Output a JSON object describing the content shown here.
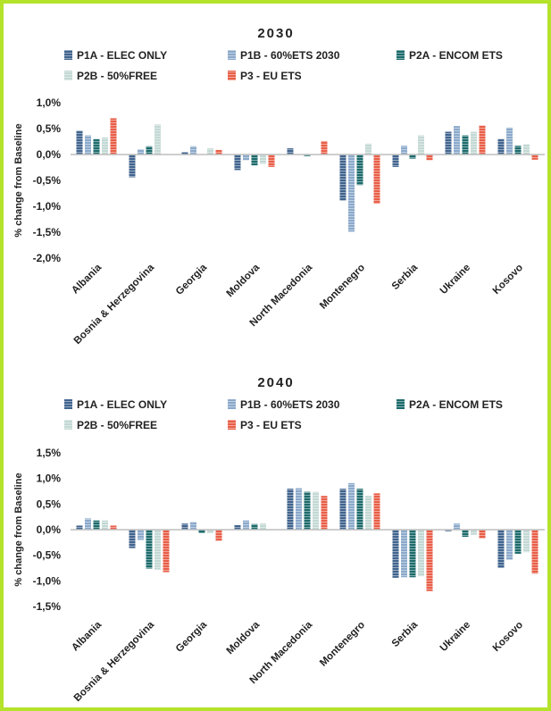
{
  "chart_data": [
    {
      "type": "bar",
      "title": "2030",
      "ylabel": "% change from Baseline",
      "xlabel": "",
      "ylim": [
        -2.0,
        1.0
      ],
      "yticks": [
        "1,0%",
        "0,5%",
        "0,0%",
        "-0,5%",
        "-1,0%",
        "-1,5%",
        "-2,0%"
      ],
      "grid": false,
      "legend": "top",
      "categories": [
        "Albania",
        "Bosnia & Herzegovina",
        "Georgia",
        "Moldova",
        "North Macedonia",
        "Montenegro",
        "Serbia",
        "Ukraine",
        "Kosovo"
      ],
      "series": [
        {
          "name": "P1A - ELEC ONLY",
          "color": "#41648e",
          "values": [
            0.46,
            -0.44,
            0.05,
            -0.3,
            0.12,
            -0.89,
            -0.24,
            0.44,
            0.3
          ]
        },
        {
          "name": "P1B - 60%ETS 2030",
          "color": "#8ba9cb",
          "values": [
            0.37,
            0.1,
            0.16,
            -0.11,
            0.0,
            -1.49,
            0.17,
            0.55,
            0.52
          ]
        },
        {
          "name": "P2A - ENCOM ETS",
          "color": "#1e6b6c",
          "values": [
            0.3,
            0.16,
            0.0,
            -0.21,
            -0.03,
            -0.59,
            -0.08,
            0.37,
            0.17
          ]
        },
        {
          "name": "P2B - 50%FREE",
          "color": "#c3d8d4",
          "values": [
            0.33,
            0.58,
            0.12,
            -0.18,
            0.0,
            0.21,
            0.37,
            0.44,
            0.2
          ]
        },
        {
          "name": "P3 - EU ETS",
          "color": "#e85f48",
          "values": [
            0.7,
            0.0,
            0.09,
            -0.24,
            0.26,
            -0.95,
            -0.11,
            0.56,
            -0.1
          ]
        }
      ]
    },
    {
      "type": "bar",
      "title": "2040",
      "ylabel": "% change from Baseline",
      "xlabel": "",
      "ylim": [
        -1.5,
        1.5
      ],
      "yticks": [
        "1,5%",
        "1,0%",
        "0,5%",
        "0,0%",
        "-0,5%",
        "-1,0%",
        "-1,5%"
      ],
      "grid": false,
      "legend": "top",
      "categories": [
        "Albania",
        "Bosnia & Herzegovina",
        "Georgia",
        "Moldova",
        "North Macedonia",
        "Montenegro",
        "Serbia",
        "Ukraine",
        "Kosovo"
      ],
      "series": [
        {
          "name": "P1A - ELEC ONLY",
          "color": "#41648e",
          "values": [
            0.08,
            -0.36,
            0.12,
            0.09,
            0.8,
            0.8,
            -0.94,
            -0.03,
            -0.75
          ]
        },
        {
          "name": "P1B - 60%ETS 2030",
          "color": "#8ba9cb",
          "values": [
            0.22,
            -0.2,
            0.15,
            0.18,
            0.81,
            0.91,
            -0.93,
            0.12,
            -0.59
          ]
        },
        {
          "name": "P2A - ENCOM ETS",
          "color": "#1e6b6c",
          "values": [
            0.18,
            -0.76,
            -0.07,
            0.11,
            0.74,
            0.8,
            -0.93,
            -0.14,
            -0.47
          ]
        },
        {
          "name": "P2B - 50%FREE",
          "color": "#c3d8d4",
          "values": [
            0.18,
            -0.78,
            -0.07,
            0.12,
            0.74,
            0.66,
            -0.91,
            -0.1,
            -0.44
          ]
        },
        {
          "name": "P3 - EU ETS",
          "color": "#e85f48",
          "values": [
            0.08,
            -0.83,
            -0.22,
            0.0,
            0.66,
            0.71,
            -1.2,
            -0.17,
            -0.86
          ]
        }
      ]
    }
  ]
}
